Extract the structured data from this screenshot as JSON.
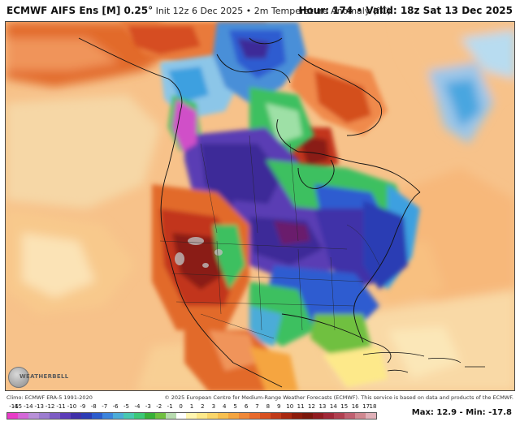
{
  "header": {
    "model": "ECMWF AIFS Ens [M] 0.25°",
    "init": "Init 12z 6 Dec 2025",
    "separator": "•",
    "field": "2m Temperature Anomaly (°C)",
    "hour_label": "Hour: 174",
    "valid_label": "Valid: 18z Sat 13 Dec 2025"
  },
  "footer": {
    "climo": "Climo: ECMWF ERA-5 1991-2020",
    "copyright": "© 2025 European Centre for Medium-Range Weather Forecasts (ECMWF). This service is based on data and products of the ECMWF.",
    "max": "Max: 12.9",
    "min": "Min: -17.8"
  },
  "logo": {
    "text": "WEATHERBELL",
    "icon": "globe-icon"
  },
  "colorbar": {
    "labels": [
      "-16",
      "-15",
      "-14",
      "-13",
      "-12",
      "-11",
      "-10",
      "-9",
      "-8",
      "-7",
      "-6",
      "-5",
      "-4",
      "-3",
      "-2",
      "-1",
      "0",
      "1",
      "2",
      "3",
      "4",
      "5",
      "6",
      "7",
      "8",
      "9",
      "10",
      "11",
      "12",
      "13",
      "14",
      "15",
      "16",
      "17",
      "18"
    ],
    "colors": [
      "#e83cc8",
      "#d468d8",
      "#b890d8",
      "#9c7cd0",
      "#7d5cc4",
      "#5c3cb8",
      "#4030a8",
      "#2c3cb4",
      "#2c5ccc",
      "#3c84dc",
      "#4cacd8",
      "#48c8b0",
      "#3cc878",
      "#38b038",
      "#70c040",
      "#b8dcb0",
      "#ffffff",
      "#fff6b0",
      "#fde98a",
      "#fad66a",
      "#f8c050",
      "#f5a540",
      "#f08838",
      "#e86a2c",
      "#d85020",
      "#c03a18",
      "#a82810",
      "#8c1c0c",
      "#7a180c",
      "#901c20",
      "#a02838",
      "#b04050",
      "#c06070",
      "#d08890",
      "#e0b0b8"
    ]
  },
  "map": {
    "region": "North America",
    "palette": {
      "ocean_warm": "#f7c58e",
      "ocean_pale": "#fadcb0",
      "cold_core": "#3c2c98",
      "very_cold": "#5a3cb4",
      "cold": "#2f5bd0",
      "cool": "#3ca0e0",
      "near_zero_green": "#3cc060",
      "warm": "#e26a2c",
      "very_warm": "#c2341a",
      "extreme_warm": "#8a1c12",
      "magenta": "#d050c8"
    }
  }
}
